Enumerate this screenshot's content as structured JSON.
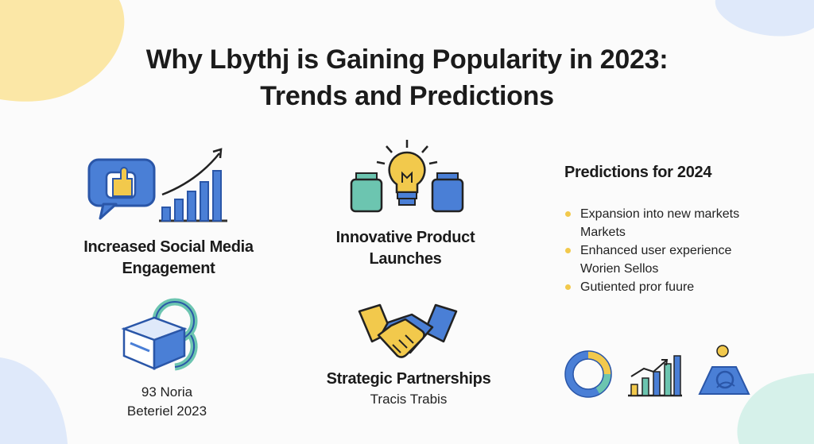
{
  "title": {
    "line1": "Why Lbythj is Gaining Popularity in 2023:",
    "line2": "Trends and Predictions"
  },
  "features": [
    {
      "icon": "thumbs-up-growth-icon",
      "caption_line1": "Increased Social Media",
      "caption_line2": "Engagement"
    },
    {
      "icon": "lightbulb-product-icon",
      "caption_line1": "Innovative Product",
      "caption_line2": "Launches"
    },
    {
      "icon": "cube-network-icon",
      "subtitle_line1": "93 Noria",
      "subtitle_line2": "Beteriel 2023"
    },
    {
      "icon": "handshake-icon",
      "caption_line1": "Strategic Partnerships",
      "subtitle_line1": "Tracis Trabis"
    }
  ],
  "predictions": {
    "heading": "Predictions for 2024",
    "items": [
      {
        "line1": "Expansion into new markets",
        "line2": "Markets"
      },
      {
        "line1": "Enhanced user experience",
        "line2": "Worien Sellos"
      },
      {
        "line1": "Gutiented pror fuure",
        "line2": ""
      }
    ]
  },
  "colors": {
    "blue": "#4a7fd6",
    "dark_blue": "#2a56a8",
    "yellow": "#f2c94c",
    "teal": "#6cc5b0",
    "blob_yellow": "#fbe7a6",
    "blob_blue": "#dfe9fa",
    "blob_teal": "#d6f1ea"
  }
}
